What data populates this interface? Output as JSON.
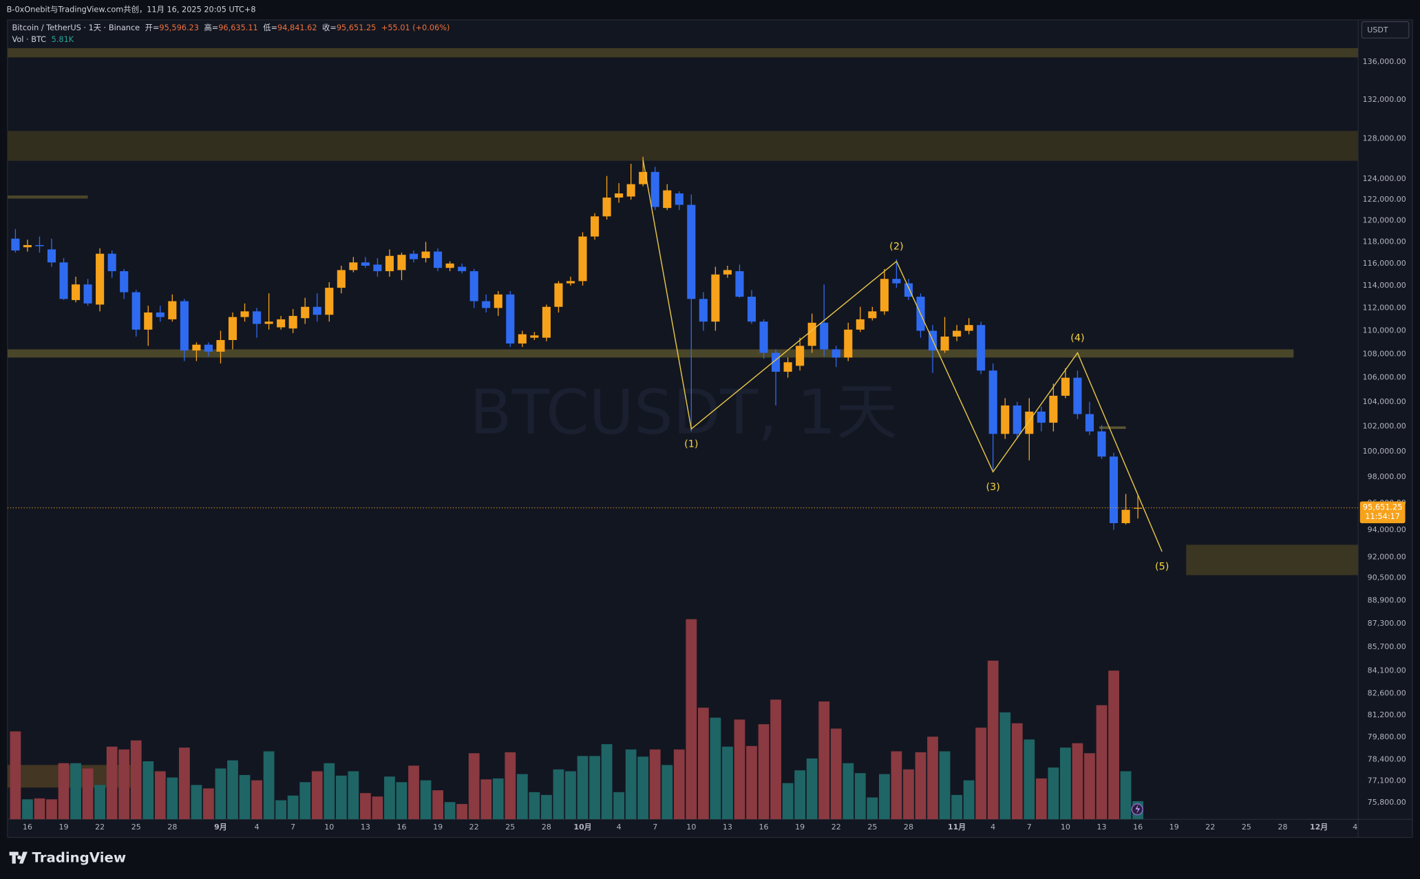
{
  "header": {
    "text": "B-0xOnebit与TradingView.com共创，11月 16, 2025 20:05 UTC+8"
  },
  "footer": {
    "brand": "TradingView"
  },
  "chart_data": {
    "type": "candlestick",
    "watermark": "BTCUSDT, 1天",
    "currency": "USDT",
    "countdown": "11:54:17",
    "legend": {
      "symbol": "Bitcoin / TetherUS · 1天 · Binance",
      "open_label": "开=",
      "open": "95,596.23",
      "high_label": "高=",
      "high": "96,635.11",
      "low_label": "低=",
      "low": "94,841.62",
      "close_label": "收=",
      "close": "95,651.25",
      "change": "+55.01 (+0.06%)",
      "volume_label": "Vol · BTC",
      "volume": "5.81K"
    },
    "log_scale": true,
    "grid": false,
    "up_color": "#f7a21b",
    "down_color": "#2f6bf0",
    "volume_up_color": "#1f6565",
    "volume_down_color": "#8a3a40",
    "wave_color": "#e6c547",
    "ylim": [
      74800,
      140600
    ],
    "yticks": [
      {
        "value": 136000,
        "label": "136,000.00"
      },
      {
        "value": 132000,
        "label": "132,000.00"
      },
      {
        "value": 128000,
        "label": "128,000.00"
      },
      {
        "value": 124000,
        "label": "124,000.00"
      },
      {
        "value": 122000,
        "label": "122,000.00"
      },
      {
        "value": 120000,
        "label": "120,000.00"
      },
      {
        "value": 118000,
        "label": "118,000.00"
      },
      {
        "value": 116000,
        "label": "116,000.00"
      },
      {
        "value": 114000,
        "label": "114,000.00"
      },
      {
        "value": 112000,
        "label": "112,000.00"
      },
      {
        "value": 110000,
        "label": "110,000.00"
      },
      {
        "value": 108000,
        "label": "108,000.00"
      },
      {
        "value": 106000,
        "label": "106,000.00"
      },
      {
        "value": 104000,
        "label": "104,000.00"
      },
      {
        "value": 102000,
        "label": "102,000.00"
      },
      {
        "value": 100000,
        "label": "100,000.00"
      },
      {
        "value": 98000,
        "label": "98,000.00"
      },
      {
        "value": 96000,
        "label": "96,000.00"
      },
      {
        "value": 94000,
        "label": "94,000.00"
      },
      {
        "value": 92000,
        "label": "92,000.00"
      },
      {
        "value": 90500,
        "label": "90,500.00"
      },
      {
        "value": 88900,
        "label": "88,900.00"
      },
      {
        "value": 87300,
        "label": "87,300.00"
      },
      {
        "value": 85700,
        "label": "85,700.00"
      },
      {
        "value": 84100,
        "label": "84,100.00"
      },
      {
        "value": 82600,
        "label": "82,600.00"
      },
      {
        "value": 81200,
        "label": "81,200.00"
      },
      {
        "value": 79800,
        "label": "79,800.00"
      },
      {
        "value": 78400,
        "label": "78,400.00"
      },
      {
        "value": 77100,
        "label": "77,100.00"
      },
      {
        "value": 75800,
        "label": "75,800.00"
      }
    ],
    "categories": [
      null,
      "16",
      null,
      null,
      "19",
      null,
      null,
      "22",
      null,
      null,
      "25",
      null,
      null,
      "28",
      null,
      null,
      null,
      "9月",
      null,
      null,
      "4",
      null,
      null,
      "7",
      null,
      null,
      "10",
      null,
      null,
      "13",
      null,
      null,
      "16",
      null,
      null,
      "19",
      null,
      null,
      "22",
      null,
      null,
      "25",
      null,
      null,
      "28",
      null,
      null,
      "10月",
      null,
      null,
      "4",
      null,
      null,
      "7",
      null,
      null,
      "10",
      null,
      null,
      "13",
      null,
      null,
      "16",
      null,
      null,
      "19",
      null,
      null,
      "22",
      null,
      null,
      "25",
      null,
      null,
      "28",
      null,
      null,
      null,
      "11月",
      null,
      null,
      "4",
      null,
      null,
      "7",
      null,
      null,
      "10",
      null,
      null,
      "13",
      null,
      null,
      "16",
      null,
      null,
      "19",
      null,
      null,
      "22",
      null,
      null,
      "25",
      null,
      null,
      "28",
      null,
      null,
      "12月",
      null,
      null,
      "4"
    ],
    "open": [
      118300,
      117500,
      117700,
      117300,
      116100,
      112700,
      114100,
      112300,
      116900,
      115300,
      113400,
      110100,
      111600,
      111000,
      112600,
      108300,
      108800,
      108200,
      109200,
      111200,
      111700,
      110600,
      110300,
      110200,
      111100,
      112100,
      111400,
      113800,
      115400,
      116100,
      115900,
      115300,
      115400,
      116900,
      116500,
      117100,
      115600,
      115700,
      115300,
      112600,
      112000,
      113200,
      108900,
      109400,
      109400,
      112100,
      114200,
      114400,
      118500,
      120400,
      122200,
      122300,
      123500,
      124700,
      121200,
      122600,
      121500,
      112800,
      110800,
      115000,
      115300,
      113000,
      110800,
      108100,
      106500,
      107000,
      108700,
      110700,
      108400,
      107700,
      110100,
      111100,
      111700,
      114600,
      114200,
      113000,
      110000,
      108300,
      109500,
      110000,
      110500,
      106600,
      101400,
      103700,
      101400,
      103200,
      102300,
      104500,
      106000,
      103000,
      101600,
      99600,
      94500,
      95596.23,
      null,
      null,
      null,
      null,
      null,
      null,
      null,
      null,
      null,
      null,
      null,
      null,
      null,
      null,
      null,
      null,
      null,
      null
    ],
    "high": [
      119200,
      118200,
      118500,
      118300,
      116500,
      114800,
      114600,
      117400,
      117200,
      115500,
      113600,
      112200,
      112200,
      113200,
      112800,
      109000,
      109000,
      110000,
      111600,
      112400,
      112000,
      113300,
      111300,
      111900,
      112900,
      113300,
      114300,
      115800,
      116600,
      116600,
      116500,
      117300,
      117000,
      117200,
      118000,
      117400,
      116200,
      116000,
      115500,
      113200,
      113500,
      113500,
      110000,
      109900,
      112300,
      114400,
      114800,
      118900,
      120700,
      124300,
      123600,
      125500,
      126200,
      125200,
      123500,
      122800,
      122500,
      113400,
      115700,
      115800,
      115900,
      113600,
      111000,
      108400,
      107700,
      109400,
      111500,
      114100,
      108700,
      110700,
      112100,
      112100,
      115500,
      116400,
      114600,
      113300,
      110500,
      111200,
      110500,
      111100,
      110800,
      107200,
      104300,
      104000,
      104300,
      103600,
      105500,
      106800,
      106600,
      104000,
      102100,
      99900,
      96700,
      96635.11,
      null,
      null,
      null,
      null,
      null,
      null,
      null,
      null,
      null,
      null,
      null,
      null,
      null,
      null,
      null,
      null,
      null,
      null
    ],
    "low": [
      117000,
      117100,
      117000,
      115700,
      112700,
      112500,
      112200,
      111700,
      114700,
      112800,
      109500,
      108700,
      110800,
      110800,
      107400,
      107400,
      107800,
      107200,
      108400,
      110800,
      109400,
      110100,
      110100,
      109800,
      110600,
      110800,
      110800,
      113300,
      115200,
      115600,
      114800,
      114800,
      114500,
      116100,
      116100,
      115300,
      115300,
      115100,
      112000,
      111600,
      111300,
      108600,
      108600,
      109200,
      109100,
      111600,
      114000,
      114000,
      118200,
      120100,
      121700,
      122000,
      123300,
      121000,
      121000,
      121000,
      101600,
      110000,
      110000,
      114700,
      112900,
      110600,
      107600,
      103700,
      106000,
      106600,
      108100,
      107800,
      106900,
      107400,
      109900,
      110900,
      111400,
      113800,
      112700,
      109400,
      106400,
      108100,
      109100,
      109700,
      106300,
      98500,
      101000,
      101000,
      99300,
      101600,
      101600,
      104300,
      102600,
      101300,
      99400,
      94000,
      94400,
      94841.62,
      null,
      null,
      null,
      null,
      null,
      null,
      null,
      null,
      null,
      null,
      null,
      null,
      null,
      null,
      null,
      null,
      null,
      null
    ],
    "close": [
      117200,
      117700,
      117600,
      116100,
      112800,
      114100,
      112400,
      116900,
      115300,
      113400,
      110100,
      111600,
      111200,
      112600,
      108300,
      108800,
      108200,
      109200,
      111200,
      111700,
      110600,
      110800,
      111000,
      111300,
      112100,
      111400,
      113800,
      115400,
      116100,
      115800,
      115300,
      116700,
      116800,
      116400,
      117100,
      115600,
      116000,
      115300,
      112600,
      112000,
      113200,
      108900,
      109700,
      109600,
      112100,
      114200,
      114400,
      118500,
      120400,
      122200,
      122600,
      123500,
      124700,
      121300,
      122900,
      121500,
      112800,
      110800,
      115000,
      115400,
      113000,
      110800,
      108100,
      106500,
      107300,
      108700,
      110700,
      108400,
      107700,
      110100,
      111000,
      111700,
      114600,
      114200,
      113000,
      110000,
      108300,
      109500,
      110000,
      110500,
      106600,
      101400,
      103700,
      101400,
      103200,
      102300,
      104500,
      106000,
      103000,
      101600,
      99600,
      94500,
      95500,
      95651.25,
      null,
      null,
      null,
      null,
      null,
      null,
      null,
      null,
      null,
      null,
      null,
      null,
      null,
      null,
      null,
      null,
      null,
      null
    ],
    "volume": [
      28200,
      6400,
      6700,
      6400,
      18000,
      18000,
      16300,
      11000,
      23300,
      22400,
      25300,
      18600,
      15400,
      13400,
      23000,
      11000,
      9900,
      16300,
      18900,
      14200,
      12500,
      21800,
      6100,
      7600,
      11900,
      15400,
      18000,
      14000,
      15400,
      8400,
      7300,
      13700,
      11900,
      17200,
      12500,
      9300,
      5500,
      4900,
      21200,
      12800,
      13100,
      21500,
      14500,
      8700,
      7800,
      16000,
      15400,
      20300,
      20300,
      24100,
      8700,
      22400,
      20100,
      22400,
      17400,
      22400,
      64200,
      35800,
      32600,
      23300,
      32000,
      23500,
      30500,
      38400,
      11600,
      15700,
      19500,
      37800,
      29100,
      18000,
      14800,
      7000,
      14500,
      21800,
      16000,
      21500,
      26500,
      21800,
      7800,
      12500,
      29400,
      50900,
      34300,
      30800,
      25600,
      13100,
      16600,
      23000,
      24400,
      21200,
      36600,
      47700,
      15400,
      5810,
      null,
      null,
      null,
      null,
      null,
      null,
      null,
      null,
      null,
      null,
      null,
      null,
      null,
      null,
      null,
      null,
      null,
      null
    ],
    "zones": [
      {
        "y": [
          136500,
          137500
        ],
        "x": [
          -0.65,
          111.3
        ],
        "color": "#3f3b24"
      },
      {
        "y": [
          125800,
          128800
        ],
        "x": [
          -0.65,
          111.3
        ],
        "color": "#332f1f"
      },
      {
        "y": [
          122100,
          122400
        ],
        "x": [
          -0.65,
          6
        ],
        "color": "#4a4629"
      },
      {
        "y": [
          107700,
          108400
        ],
        "x": [
          -0.65,
          105.9
        ],
        "color": "#4a4629"
      },
      {
        "y": [
          90700,
          92900
        ],
        "x": [
          97,
          111.3
        ],
        "color": "#3a3622"
      },
      {
        "y": [
          101800,
          102000
        ],
        "x": [
          89.8,
          92
        ],
        "color": "#5a5431"
      }
    ],
    "wave": {
      "x": [
        52,
        56,
        73,
        81,
        88,
        95
      ],
      "y": [
        125900,
        101800,
        116200,
        98400,
        108100,
        92400
      ],
      "labels": [
        null,
        "(1)",
        "(2)",
        "(3)",
        "(4)",
        "(5)"
      ]
    }
  }
}
